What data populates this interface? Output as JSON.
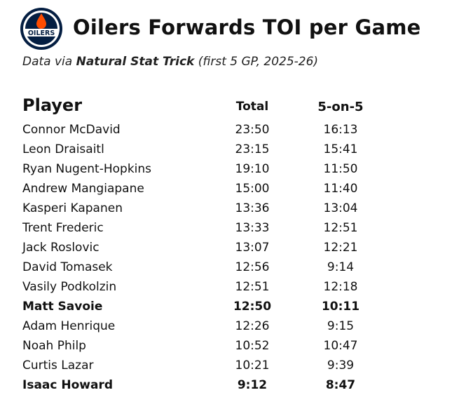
{
  "title": "Oilers Forwards TOI per Game",
  "subtitle": {
    "prefix": "Data via ",
    "source": "Natural Stat Trick",
    "suffix": " (first 5 GP, 2025-26)"
  },
  "logo": {
    "text": "OILERS",
    "icon": "oilers-logo",
    "color_navy": "#041E42",
    "color_orange": "#FF4C00"
  },
  "chart_data": {
    "type": "table",
    "title": "Oilers Forwards TOI per Game",
    "columns": [
      "Player",
      "Total",
      "5-on-5"
    ],
    "rows": [
      {
        "player": "Connor McDavid",
        "total": "23:50",
        "five_on_five": "16:13",
        "bold": false
      },
      {
        "player": "Leon Draisaitl",
        "total": "23:15",
        "five_on_five": "15:41",
        "bold": false
      },
      {
        "player": "Ryan Nugent-Hopkins",
        "total": "19:10",
        "five_on_five": "11:50",
        "bold": false
      },
      {
        "player": "Andrew Mangiapane",
        "total": "15:00",
        "five_on_five": "11:40",
        "bold": false
      },
      {
        "player": "Kasperi Kapanen",
        "total": "13:36",
        "five_on_five": "13:04",
        "bold": false
      },
      {
        "player": "Trent Frederic",
        "total": "13:33",
        "five_on_five": "12:51",
        "bold": false
      },
      {
        "player": "Jack Roslovic",
        "total": "13:07",
        "five_on_five": "12:21",
        "bold": false
      },
      {
        "player": "David Tomasek",
        "total": "12:56",
        "five_on_five": "9:14",
        "bold": false
      },
      {
        "player": "Vasily Podkolzin",
        "total": "12:51",
        "five_on_five": "12:18",
        "bold": false
      },
      {
        "player": "Matt Savoie",
        "total": "12:50",
        "five_on_five": "10:11",
        "bold": true
      },
      {
        "player": "Adam Henrique",
        "total": "12:26",
        "five_on_five": "9:15",
        "bold": false
      },
      {
        "player": "Noah Philp",
        "total": "10:52",
        "five_on_five": "10:47",
        "bold": false
      },
      {
        "player": "Curtis Lazar",
        "total": "10:21",
        "five_on_five": "9:39",
        "bold": false
      },
      {
        "player": "Isaac Howard",
        "total": "9:12",
        "five_on_five": "8:47",
        "bold": true
      }
    ]
  }
}
